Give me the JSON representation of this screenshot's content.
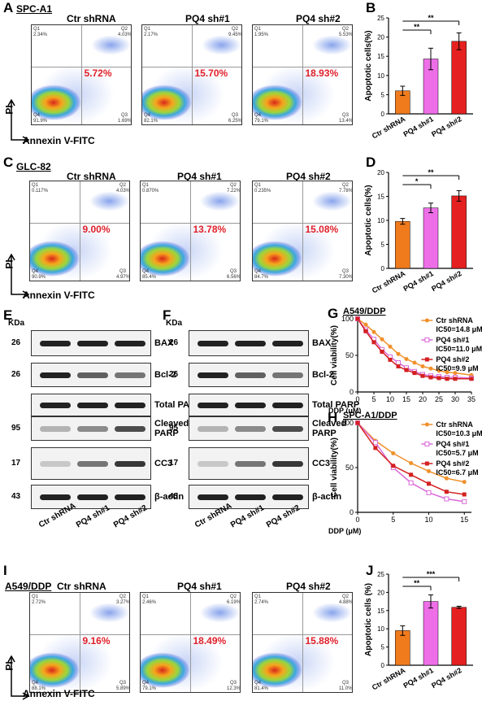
{
  "colors": {
    "ctr": "#f07b1d",
    "sh1": "#ee6ee8",
    "sh2": "#e52020",
    "pct": "#e0202a",
    "ctr_line": "#f0902a",
    "sh1_line": "#d96ad9",
    "sh2_line": "#d42020"
  },
  "panels": {
    "A": "A",
    "B": "B",
    "C": "C",
    "D": "D",
    "E": "E",
    "F": "F",
    "G": "G",
    "H": "H",
    "I": "I",
    "J": "J"
  },
  "cell_lines": {
    "a": "SPC-A1",
    "c": "GLC-82",
    "i": "A549/DDP"
  },
  "conditions": [
    "Ctr shRNA",
    "PQ4 sh#1",
    "PQ4 sh#2"
  ],
  "axis": {
    "pi": "PI",
    "annexin": "Annexin V-FITC",
    "apoptotic": "Apoptotic cells(%)",
    "apoptotic_j": "Apoptotic cells (%)",
    "viability": "Cell viability(%)",
    "ddp": "DDP (μM)"
  },
  "flow_a": [
    {
      "pct": "5.72%",
      "q": [
        "Q1",
        "2.34%",
        "Q2",
        "4.03%",
        "Q4",
        "91.9%",
        "Q3",
        "1.69%"
      ]
    },
    {
      "pct": "15.70%",
      "q": [
        "Q1",
        "2.17%",
        "Q2",
        "9.45%",
        "Q4",
        "82.1%",
        "Q3",
        "6.25%"
      ]
    },
    {
      "pct": "18.93%",
      "q": [
        "Q1",
        "1.95%",
        "Q2",
        "5.53%",
        "Q4",
        "79.1%",
        "Q3",
        "13.4%"
      ]
    }
  ],
  "flow_c": [
    {
      "pct": "9.00%",
      "q": [
        "Q1",
        "0.117%",
        "Q2",
        "4.03%",
        "Q4",
        "90.9%",
        "Q3",
        "4.97%"
      ]
    },
    {
      "pct": "13.78%",
      "q": [
        "Q1",
        "0.870%",
        "Q2",
        "7.22%",
        "Q4",
        "85.4%",
        "Q3",
        "6.56%"
      ]
    },
    {
      "pct": "15.08%",
      "q": [
        "Q1",
        "0.235%",
        "Q2",
        "7.78%",
        "Q4",
        "84.7%",
        "Q3",
        "7.30%"
      ]
    }
  ],
  "flow_i": [
    {
      "pct": "9.16%",
      "q": [
        "Q1",
        "2.72%",
        "Q2",
        "3.27%",
        "Q4",
        "88.1%",
        "Q3",
        "5.89%"
      ]
    },
    {
      "pct": "18.49%",
      "q": [
        "Q1",
        "2.46%",
        "Q2",
        "6.19%",
        "Q4",
        "79.1%",
        "Q3",
        "12.3%"
      ]
    },
    {
      "pct": "15.88%",
      "q": [
        "Q1",
        "2.74%",
        "Q2",
        "4.88%",
        "Q4",
        "81.4%",
        "Q3",
        "11.0%"
      ]
    }
  ],
  "blot": {
    "kda": "KDa",
    "bax": "BAX",
    "bcl2": "Bcl-2",
    "total_parp": "Total PARP",
    "cleaved_parp": "Cleaved\nPARP",
    "cc3": "CC3",
    "actin": "β-actin",
    "mw": [
      "26",
      "26",
      "95",
      "17",
      "43"
    ]
  },
  "chart_data": [
    {
      "id": "B",
      "type": "bar",
      "categories": [
        "Ctr shRNA",
        "PQ4 sh#1",
        "PQ4 sh#2"
      ],
      "values": [
        6,
        14.3,
        18.9
      ],
      "errors": [
        1.2,
        2.8,
        2.2
      ],
      "ylabel": "Apoptotic cells(%)",
      "ylim": [
        0,
        25
      ],
      "yticks": [
        0,
        5,
        10,
        15,
        20,
        25
      ],
      "sig": [
        {
          "from": 0,
          "to": 1,
          "label": "**"
        },
        {
          "from": 0,
          "to": 2,
          "label": "**"
        }
      ]
    },
    {
      "id": "D",
      "type": "bar",
      "categories": [
        "Ctr shRNA",
        "PQ4 sh#1",
        "PQ4 sh#2"
      ],
      "values": [
        9.8,
        12.6,
        15.1
      ],
      "errors": [
        0.6,
        1.0,
        1.1
      ],
      "ylabel": "Apoptotic cells(%)",
      "ylim": [
        0,
        20
      ],
      "yticks": [
        0,
        5,
        10,
        15,
        20
      ],
      "sig": [
        {
          "from": 0,
          "to": 1,
          "label": "*"
        },
        {
          "from": 0,
          "to": 2,
          "label": "**"
        }
      ]
    },
    {
      "id": "J",
      "type": "bar",
      "categories": [
        "Ctr shRNA",
        "PQ4 sh#1",
        "PQ4 sh#2"
      ],
      "values": [
        9.5,
        17.5,
        15.9
      ],
      "errors": [
        1.3,
        1.8,
        0.3
      ],
      "ylabel": "Apoptotic cells (%)",
      "ylim": [
        0,
        25
      ],
      "yticks": [
        0,
        5,
        10,
        15,
        20,
        25
      ],
      "sig": [
        {
          "from": 0,
          "to": 1,
          "label": "**"
        },
        {
          "from": 0,
          "to": 2,
          "label": "***"
        }
      ]
    },
    {
      "id": "G",
      "type": "line",
      "title": "A549/DDP",
      "x": [
        0,
        2.5,
        5,
        7.5,
        10,
        12.5,
        15,
        17.5,
        20,
        22.5,
        25,
        27.5,
        30,
        35
      ],
      "series": [
        {
          "name": "Ctr shRNA",
          "ic50": "IC50=14.8 μM",
          "values": [
            100,
            92,
            82,
            72,
            62,
            52,
            45,
            40,
            35,
            32,
            29,
            27,
            26,
            23
          ]
        },
        {
          "name": "PQ4 sh#1",
          "ic50": "IC50=11.0 μM",
          "values": [
            100,
            85,
            72,
            58,
            48,
            40,
            33,
            28,
            24,
            22,
            21,
            20,
            20,
            19
          ]
        },
        {
          "name": "PQ4 sh#2",
          "ic50": "IC50=9.9 μM",
          "values": [
            100,
            83,
            68,
            55,
            44,
            35,
            30,
            26,
            22,
            20,
            19,
            18,
            18,
            18
          ]
        }
      ],
      "xlabel": "DDP (μM)",
      "ylabel": "Cell viability(%)",
      "xlim": [
        0,
        35
      ],
      "ylim": [
        0,
        100
      ],
      "xticks": [
        0,
        5,
        10,
        15,
        20,
        25,
        30,
        35
      ],
      "yticks": [
        0,
        50,
        100
      ]
    },
    {
      "id": "H",
      "type": "line",
      "title": "SPC-A1/DDP",
      "x": [
        0,
        2.5,
        5,
        7.5,
        10,
        12.5,
        15
      ],
      "series": [
        {
          "name": "Ctr shRNA",
          "ic50": "IC50=10.3 μM",
          "values": [
            100,
            80,
            66,
            55,
            46,
            38,
            34
          ]
        },
        {
          "name": "PQ4 sh#1",
          "ic50": "IC50=5.7 μM",
          "values": [
            100,
            78,
            50,
            33,
            22,
            15,
            12
          ]
        },
        {
          "name": "PQ4 sh#2",
          "ic50": "IC50=6.7 μM",
          "values": [
            100,
            72,
            52,
            42,
            32,
            23,
            20
          ]
        }
      ],
      "xlabel": "DDP (μM)",
      "ylabel": "Cell viability(%)",
      "xlim": [
        0,
        16
      ],
      "ylim": [
        0,
        100
      ],
      "xticks": [
        0,
        5,
        10,
        15
      ],
      "yticks": [
        0,
        50,
        100
      ]
    }
  ]
}
